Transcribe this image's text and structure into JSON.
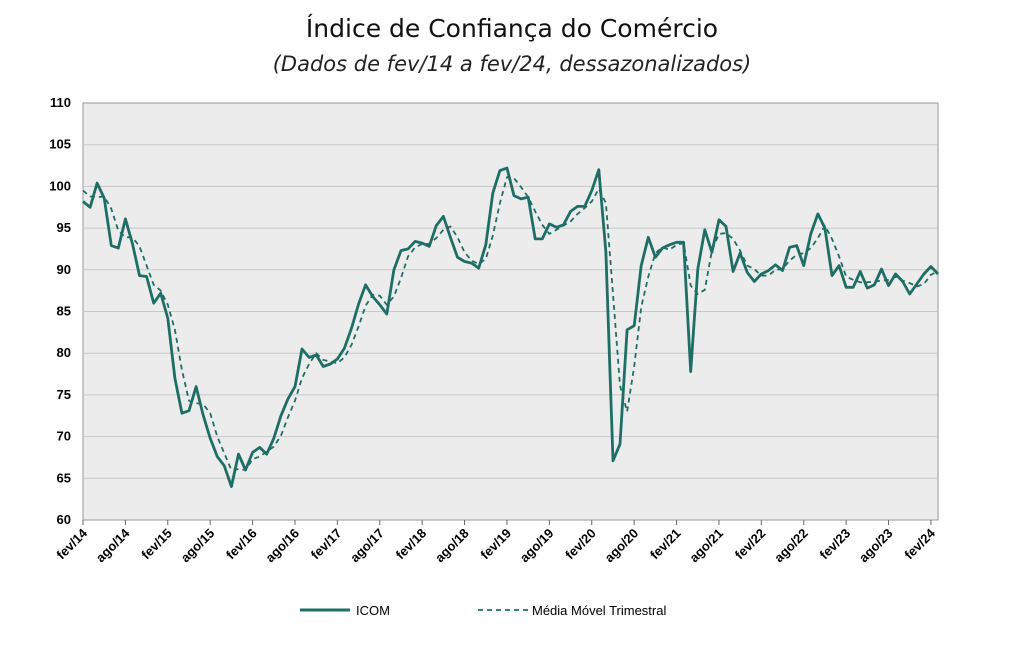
{
  "chart_data": {
    "type": "line",
    "title": "Índice de Confiança do Comércio",
    "subtitle": "(Dados de fev/14 a fev/24, dessazonalizados)",
    "xlabel": "",
    "ylabel": "",
    "ylim": [
      60,
      110
    ],
    "yticks": [
      60,
      65,
      70,
      75,
      80,
      85,
      90,
      95,
      100,
      105,
      110
    ],
    "x_tick_labels": [
      "fev/14",
      "ago/14",
      "fev/15",
      "ago/15",
      "fev/16",
      "ago/16",
      "fev/17",
      "ago/17",
      "fev/18",
      "ago/18",
      "fev/19",
      "ago/19",
      "fev/20",
      "ago/20",
      "fev/21",
      "ago/21",
      "fev/22",
      "ago/22",
      "fev/23",
      "ago/23",
      "fev/24"
    ],
    "grid": true,
    "legend_position": "bottom",
    "series": [
      {
        "name": "ICOM",
        "style": "solid",
        "color": "#1e6e66",
        "values": [
          98.2,
          97.5,
          100.4,
          98.6,
          92.9,
          92.6,
          96.1,
          93.1,
          89.3,
          89.2,
          86.0,
          87.2,
          84.2,
          77.0,
          72.8,
          73.1,
          76.0,
          72.6,
          69.8,
          67.6,
          66.5,
          64.0,
          67.9,
          66.0,
          68.1,
          68.7,
          67.9,
          69.8,
          72.5,
          74.5,
          76.0,
          80.5,
          79.5,
          79.8,
          78.4,
          78.7,
          79.3,
          80.6,
          83.0,
          85.9,
          88.2,
          86.8,
          85.8,
          84.7,
          90.0,
          92.3,
          92.5,
          93.4,
          93.2,
          92.8,
          95.3,
          96.4,
          93.9,
          91.5,
          91.0,
          90.8,
          90.2,
          93.0,
          99.2,
          101.9,
          102.2,
          98.9,
          98.5,
          98.7,
          93.7,
          93.7,
          95.5,
          95.1,
          95.4,
          97.0,
          97.6,
          97.6,
          99.5,
          102.0,
          92.1,
          67.1,
          69.1,
          82.8,
          83.3,
          90.5,
          93.9,
          91.5,
          92.6,
          93.0,
          93.3,
          93.3,
          77.8,
          90.1,
          94.8,
          92.1,
          96.0,
          95.2,
          89.8,
          92.0,
          89.7,
          88.6,
          89.5,
          89.9,
          90.6,
          89.9,
          92.7,
          92.9,
          90.5,
          94.3,
          96.7,
          95.0,
          89.3,
          90.5,
          87.9,
          87.9,
          89.8,
          87.8,
          88.2,
          90.1,
          88.1,
          89.5,
          88.6,
          87.1,
          88.3,
          89.5,
          90.4,
          89.5
        ]
      },
      {
        "name": "Média Móvel Trimestral",
        "style": "dashed",
        "color": "#1e6e66",
        "values": [
          99.5,
          98.8,
          98.7,
          98.8,
          97.3,
          94.7,
          93.9,
          93.9,
          92.8,
          90.5,
          88.2,
          87.5,
          85.8,
          82.8,
          78.0,
          74.3,
          74.0,
          73.9,
          72.8,
          70.0,
          68.0,
          66.0,
          66.1,
          66.0,
          67.3,
          67.6,
          68.2,
          68.8,
          70.1,
          72.3,
          74.3,
          77.0,
          78.7,
          80.0,
          79.2,
          79.0,
          78.8,
          79.5,
          81.0,
          83.2,
          85.7,
          87.0,
          86.9,
          85.8,
          86.8,
          89.0,
          91.6,
          92.7,
          93.1,
          93.1,
          93.8,
          94.8,
          95.2,
          93.9,
          92.1,
          91.1,
          90.7,
          91.3,
          94.1,
          98.0,
          101.1,
          101.0,
          99.9,
          98.7,
          97.0,
          95.4,
          94.3,
          94.8,
          95.3,
          95.8,
          96.7,
          97.4,
          98.2,
          99.7,
          98.0,
          87.1,
          76.1,
          73.0,
          78.4,
          85.5,
          89.2,
          92.0,
          92.7,
          92.4,
          93.0,
          93.2,
          88.1,
          87.1,
          87.6,
          92.3,
          94.3,
          94.4,
          93.7,
          92.3,
          90.5,
          90.1,
          89.3,
          89.3,
          90.0,
          90.1,
          91.1,
          91.8,
          92.0,
          92.6,
          93.8,
          95.3,
          93.7,
          91.6,
          89.2,
          88.8,
          88.5,
          88.5,
          88.6,
          88.7,
          88.8,
          89.2,
          88.7,
          88.4,
          88.0,
          88.3,
          89.4,
          89.8
        ]
      }
    ]
  }
}
